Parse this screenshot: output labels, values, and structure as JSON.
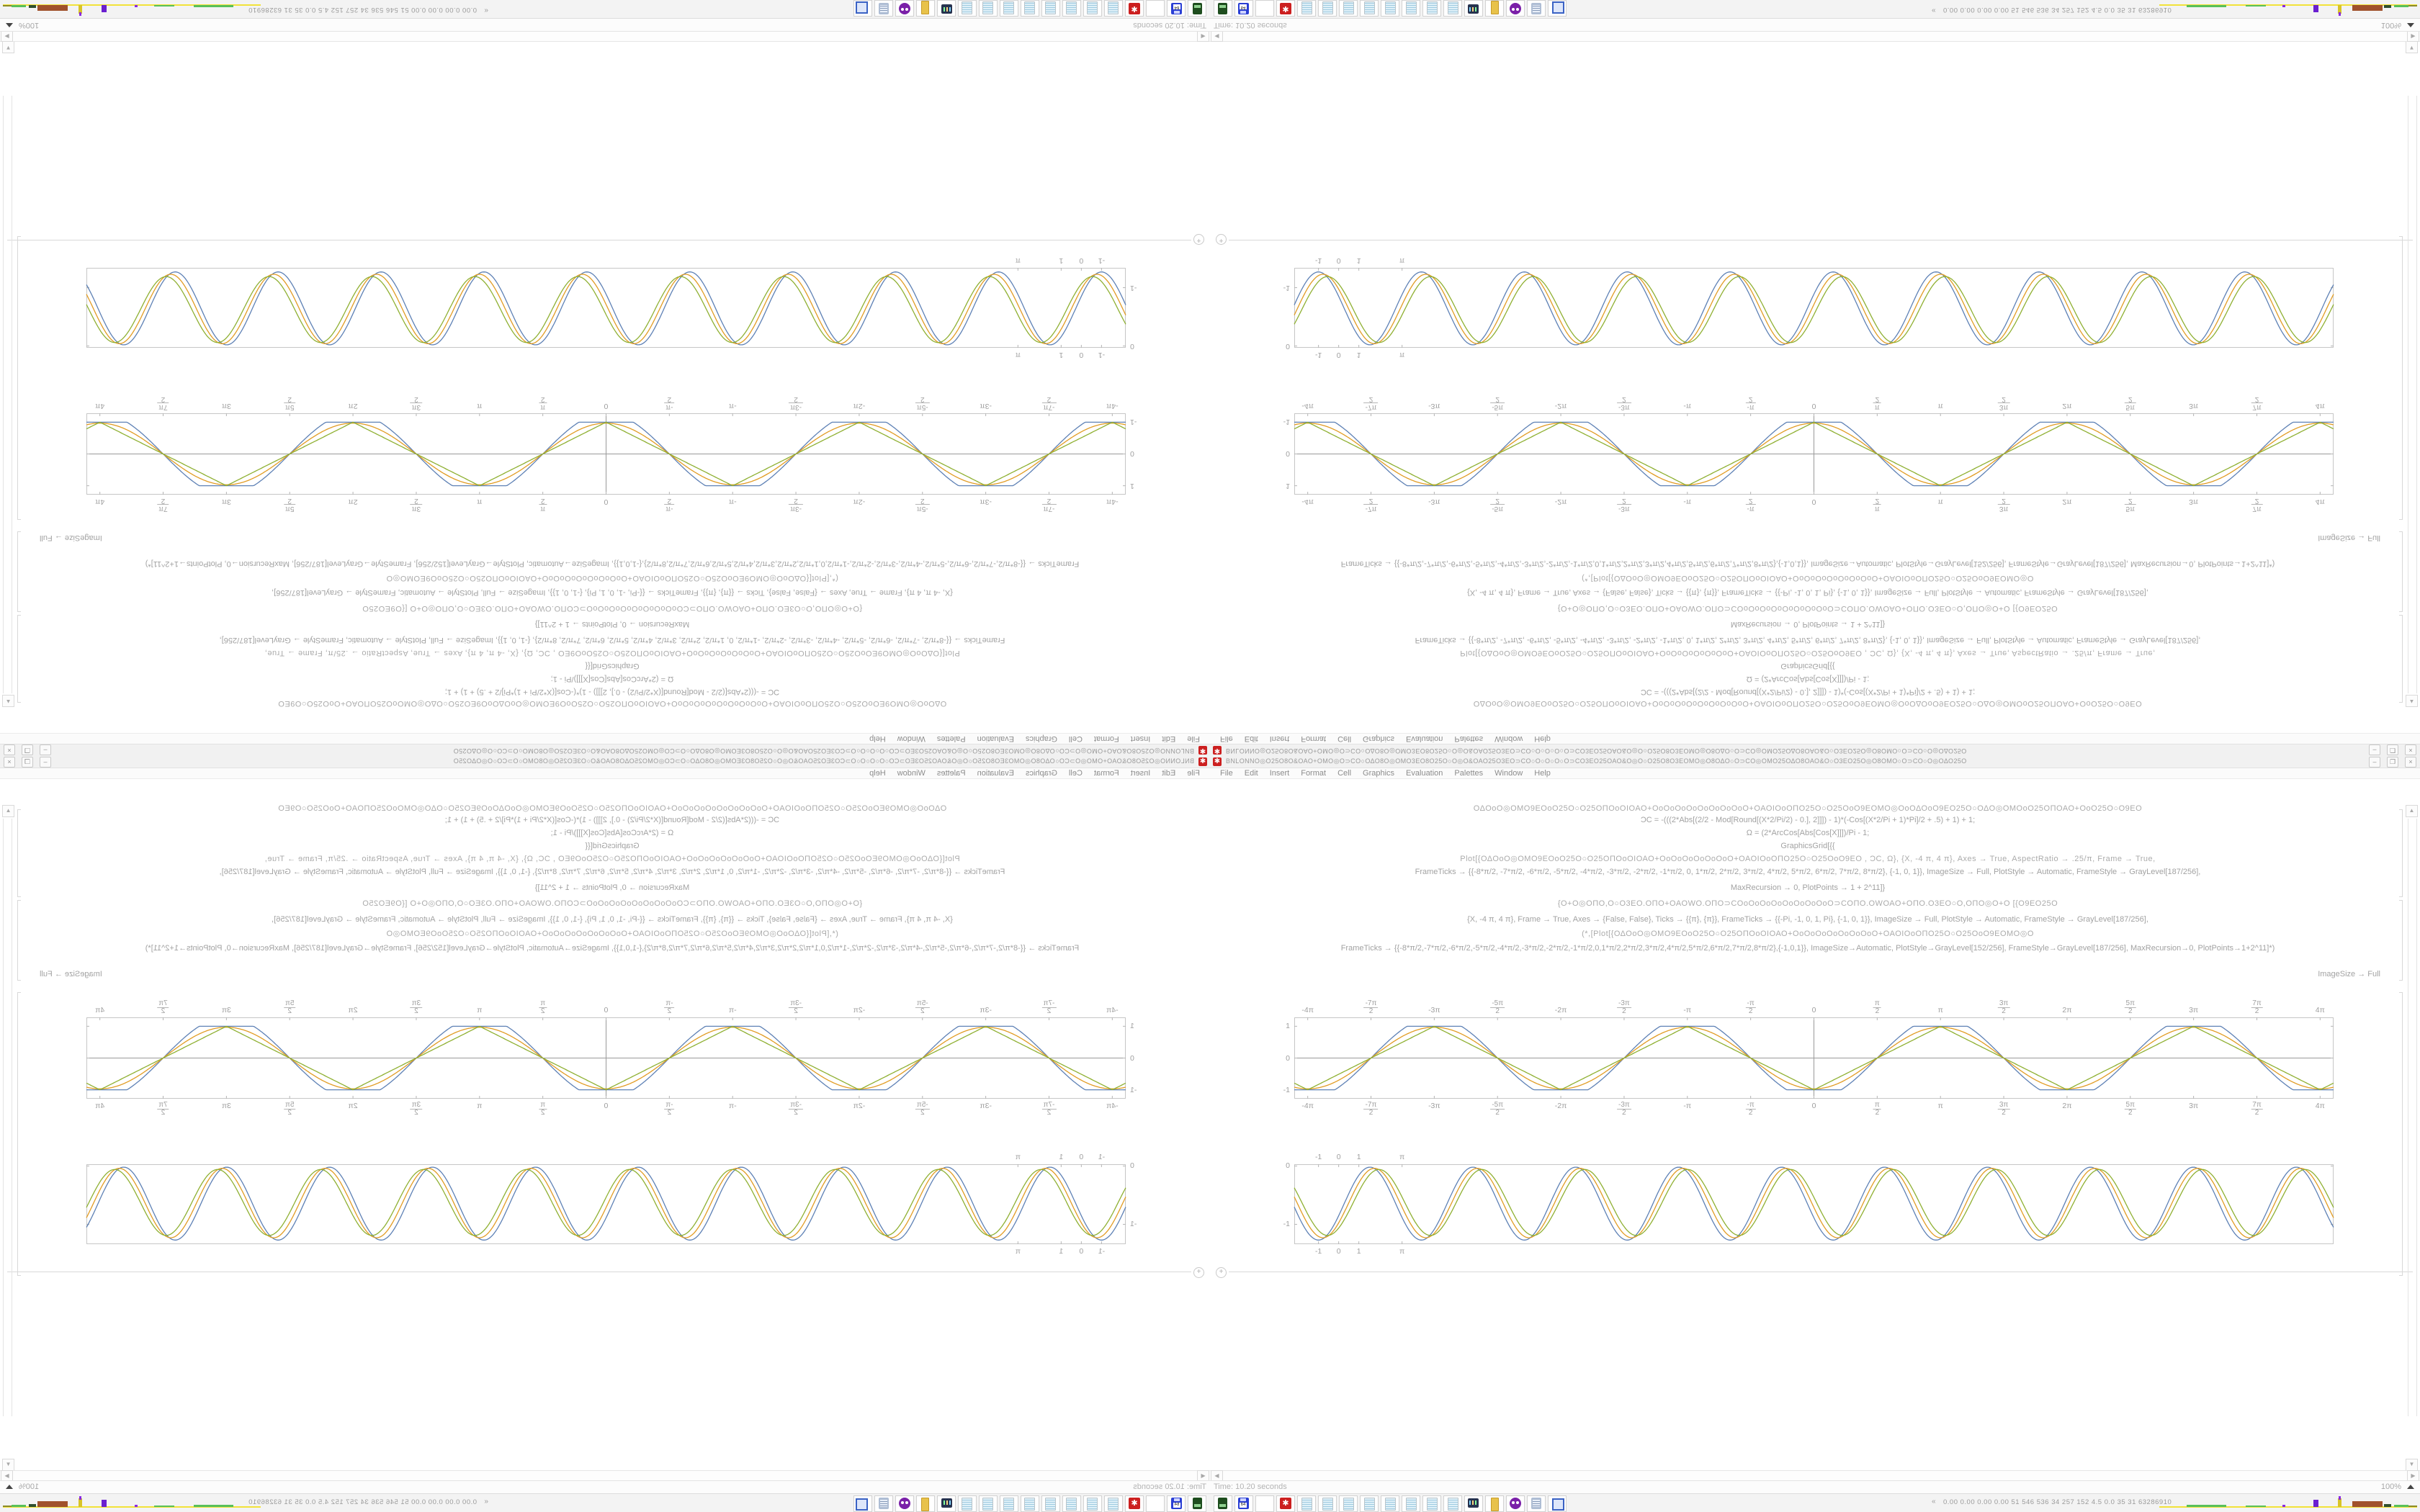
{
  "window": {
    "title": "ΒΝLΟΝΝΟ◎Ο25Ο8Ο&ΟΑΟ+ΟΜΟ◎Ο⊃CΟ○ΟΔΟ8Ο◎ΟΜΟ3ΕΟ8Ο25Ο○Ο◎Ο&ΟΑΟ25Ο3ΕΟ⊃CΟ○Ο○Ο○Ο○Ο⊃CΟ3ΕΟ25ΟΑΟ&Ο◎Ο○Ο25Ο8Ο3ΕΟΜΟ◎Ο8ΟΔΟ○Ο⊃CΟ◎ΟΜΟ25ΟΔΟ8ΟΑΟ&Ο○Ο3ΕΟ25Ο◎Ο8ΟΜΟ○Ο⊃CΟ○Ο◎ΟΔΟ25Ο",
    "controls": {
      "minimize": "–",
      "restore": "❐",
      "close": "×"
    },
    "menu": [
      "File",
      "Edit",
      "Insert",
      "Format",
      "Cell",
      "Graphics",
      "Evaluation",
      "Palettes",
      "Window",
      "Help"
    ]
  },
  "notebook": {
    "line0": "ΟΔΟοΟ◎ΟΜΟ9ΕΟοΟ25Ο○Ο25ΟΠΟοΟΙΟΑΟ+ΟοΟοΟοΟοΟοΟοΟοΟοΟ+ΟΑΟΙΟοΟΠΟ25Ο○Ο25ΟοΟ9ΕΟΜΟ◎ΟοΟΔΟοΟ9ΕΟ25Ο○ΟΔΟ◎ΟΜΟοΟ25ΟΠΟΑΟ+ΟοΟ25Ο○Ο9ΕΟ",
    "cell1": [
      "ƆC = -(((2*Abs[(2/2 - Mod[Round[(X*2/Pi/2) - 0.], 2]]]) - 1)*(-Cos[(X*2/Pi + 1)*Pi]/2 + .5) + 1) + 1;",
      "Ω = (2*ArcCos[Abs[Cos[X]]])/Pi - 1;",
      "GraphicsGrid[{{",
      "Plot[{ΟΔΟοΟ◎ΟΜΟ9ΕΟοΟ25Ο○Ο25ΟΠΟοΟΙΟΑΟ+ΟοΟοΟοΟοΟοΟοΟ+ΟΑΟΙΟοΟΠΟ25Ο○Ο25ΟοΟ9ΕΟ , ƆC, Ω}, {X, -4 π, 4 π}, Axes → True, AspectRatio → .25/π, Frame → True,",
      "FrameTicks → {{-8*π/2, -7*π/2, -6*π/2, -5*π/2, -4*π/2, -3*π/2, -2*π/2, -1*π/2, 0, 1*π/2, 2*π/2, 3*π/2, 4*π/2, 5*π/2, 6*π/2, 7*π/2, 8*π/2}, {-1, 0, 1}}, ImageSize → Full, PlotStyle → Automatic, FrameStyle → GrayLevel[187/256],",
      "MaxRecursion → 0, PlotPoints → 1 + 2^11]}"
    ],
    "cell2": [
      "{Ο+Ο◎ΟΠΟ,Ο○Ο3ΕΟ.ΟΠΟ+ΟΑΟWΟ.ΟΠΟ⊃CΟοΟοΟοΟοΟοΟοΟοΟοΟ⊃CΟΠΟ.ΟWΟΑΟ+ΟΠΟ.Ο3ΕΟ○Ο,ΟΠΟ◎Ο+Ο   [{Ο9ΕΟ25Ο",
      "{X, -4 π, 4 π}, Frame → True, Axes → {False, False}, Ticks → {{π}, {π}}, FrameTicks → {{-Pi, -1, 0, 1, Pi}, {-1, 0, 1}}, ImageSize → Full, PlotStyle → Automatic, FrameStyle → GrayLevel[187/256],",
      "(*,[Plot[{ΟΔΟοΟ◎ΟΜΟ9ΕΟοΟ25Ο○Ο25ΟΠΟοΟΙΟΑΟ+ΟοΟοΟοΟοΟοΟοΟοΟ+ΟΑΟΙΟοΟΠΟ25Ο○Ο25ΟοΟ9ΕΟΜΟ◎Ο",
      "FrameTicks → {{-8*π/2,-7*π/2,-6*π/2,-5*π/2,-4*π/2,-3*π/2,-2*π/2,-1*π/2,0,1*π/2,2*π/2,3*π/2,4*π/2,5*π/2,6*π/2,7*π/2,8*π/2},{-1,0,1}}, ImageSize→Automatic, PlotStyle→GrayLevel[152/256], FrameStyle→GrayLevel[187/256], MaxRecursion→0, PlotPoints→1+2^11]*)",
      "ImageSize → Full"
    ],
    "insert_plus": "+"
  },
  "status": {
    "time": "Time: 10.20 seconds",
    "zoom": "100%"
  },
  "scroll": {
    "up": "▲",
    "down": "▼",
    "left": "◀",
    "right": "▶"
  },
  "taskbar": {
    "icons": [
      "terminal-green",
      "floppy-64",
      "firefox",
      "mma-gear",
      "notepad",
      "notepad",
      "notepad",
      "notepad",
      "notepad",
      "notepad",
      "notepad",
      "notepad",
      "monitor",
      "folder",
      "owl",
      "scroll",
      "doc-blue"
    ],
    "chevron": "«",
    "monitor_text": "0.00 0.00 0.00 0.00   51   546   536   34   257   152   4.5   0.0   35   31   63286910"
  },
  "colors": {
    "plot_blue": "#5e81b5",
    "plot_orange": "#e19c24",
    "plot_green": "#8fb032",
    "frame_gray": "#c6c6c6",
    "axis_gray": "#9a9a9a",
    "accent_red": "#cc1f1f"
  },
  "chart_data": [
    {
      "type": "line",
      "title": "",
      "xlabel": "",
      "ylabel": "",
      "x_range": [
        -12.9,
        12.9
      ],
      "y_range": [
        -1.28,
        1.28
      ],
      "frame": true,
      "axes": {
        "x0_line": true,
        "y0_line": true
      },
      "x_tick_values": [
        -12.566,
        -10.996,
        -9.4248,
        -7.854,
        -6.2832,
        -4.7124,
        -3.1416,
        -1.5708,
        0,
        1.5708,
        3.1416,
        4.7124,
        6.2832,
        7.854,
        9.4248,
        10.996,
        12.566
      ],
      "x_tick_labels": [
        "-4π",
        "-7π/2",
        "-3π",
        "-5π/2",
        "-2π",
        "-3π/2",
        "-π",
        "-π/2",
        "0",
        "π/2",
        "π",
        "3π/2",
        "2π",
        "5π/2",
        "3π",
        "7π/2",
        "4π"
      ],
      "y_tick_values": [
        1,
        0,
        -1
      ],
      "y_tick_labels": [
        "1",
        "0",
        "-1"
      ],
      "series": [
        {
          "name": "smoothed-square-wave",
          "color": "#5e81b5",
          "type": "clipcos",
          "amp": 1,
          "clip": 1.28,
          "period": 6.2832,
          "phase": 0,
          "base": 0
        },
        {
          "name": "negative-cosine",
          "color": "#e19c24",
          "type": "negcos",
          "amp": 0.97,
          "period": 6.2832,
          "phase": 0,
          "base": 0
        },
        {
          "name": "triangle-wave",
          "color": "#8fb032",
          "type": "tri",
          "amp": 1,
          "period": 6.2832,
          "phase": 0,
          "base": 0
        }
      ],
      "legend": false,
      "grid": false
    },
    {
      "type": "line",
      "title": "",
      "xlabel": "",
      "ylabel": "",
      "x_range": [
        -2.2,
        49.3
      ],
      "y_range": [
        -1.34,
        0.03
      ],
      "frame": true,
      "axes": {
        "x0_line": false,
        "y0_line": false
      },
      "x_tick_values": [
        -1,
        0,
        1,
        3.1416
      ],
      "x_tick_labels": [
        "-1",
        "0",
        "1",
        "π"
      ],
      "y_tick_values": [
        0,
        -1
      ],
      "y_tick_labels": [
        "0",
        "-1"
      ],
      "series": [
        {
          "name": "wave-blue",
          "color": "#5e81b5",
          "type": "negcos",
          "amp": 0.625,
          "period": 5.1,
          "phase": -1.0,
          "base": -0.645
        },
        {
          "name": "wave-orange",
          "color": "#e19c24",
          "type": "negcos",
          "amp": 0.595,
          "period": 5.1,
          "phase": -0.78,
          "base": -0.635
        },
        {
          "name": "wave-green",
          "color": "#8fb032",
          "type": "negcos",
          "amp": 0.565,
          "period": 5.1,
          "phase": -0.55,
          "base": -0.625
        }
      ],
      "legend": false,
      "grid": false
    }
  ]
}
